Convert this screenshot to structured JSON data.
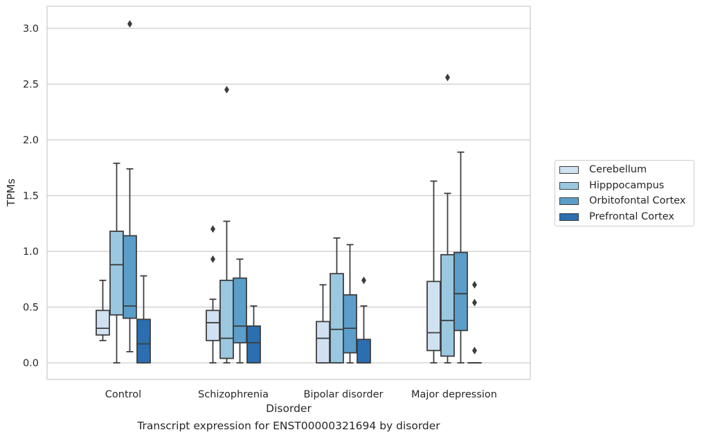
{
  "caption": "Transcript expression for ENST00000321694 by disorder",
  "chart_data": {
    "type": "box",
    "xlabel": "Disorder",
    "ylabel": "TPMs",
    "ylim": [
      -0.15,
      3.2
    ],
    "yticks": [
      0.0,
      0.5,
      1.0,
      1.5,
      2.0,
      2.5,
      3.0
    ],
    "ytick_labels": [
      "0.0",
      "0.5",
      "1.0",
      "1.5",
      "2.0",
      "2.5",
      "3.0"
    ],
    "grid": "horizontal",
    "legend_position": "right",
    "categories": [
      "Control",
      "Schizophrenia",
      "Bipolar disorder",
      "Major depression"
    ],
    "series": [
      {
        "name": "Cerebellum",
        "color": "#d0e1f2",
        "boxes": [
          {
            "min": 0.2,
            "q1": 0.25,
            "median": 0.31,
            "q3": 0.47,
            "max": 0.74,
            "outliers": []
          },
          {
            "min": 0.0,
            "q1": 0.2,
            "median": 0.36,
            "q3": 0.47,
            "max": 0.57,
            "outliers": [
              0.93,
              1.2
            ]
          },
          {
            "min": 0.0,
            "q1": 0.0,
            "median": 0.22,
            "q3": 0.37,
            "max": 0.7,
            "outliers": []
          },
          {
            "min": 0.0,
            "q1": 0.11,
            "median": 0.27,
            "q3": 0.73,
            "max": 1.63,
            "outliers": []
          }
        ]
      },
      {
        "name": "Hipppocampus",
        "color": "#9ac8e0",
        "boxes": [
          {
            "min": 0.0,
            "q1": 0.43,
            "median": 0.88,
            "q3": 1.18,
            "max": 1.79,
            "outliers": []
          },
          {
            "min": 0.0,
            "q1": 0.04,
            "median": 0.22,
            "q3": 0.74,
            "max": 1.27,
            "outliers": [
              2.45
            ]
          },
          {
            "min": 0.0,
            "q1": 0.0,
            "median": 0.3,
            "q3": 0.8,
            "max": 1.12,
            "outliers": []
          },
          {
            "min": 0.0,
            "q1": 0.06,
            "median": 0.38,
            "q3": 0.97,
            "max": 1.52,
            "outliers": [
              2.56
            ]
          }
        ]
      },
      {
        "name": "Orbitofontal Cortex",
        "color": "#5a9ec9",
        "boxes": [
          {
            "min": 0.1,
            "q1": 0.4,
            "median": 0.51,
            "q3": 1.14,
            "max": 1.74,
            "outliers": [
              3.04
            ]
          },
          {
            "min": 0.0,
            "q1": 0.18,
            "median": 0.33,
            "q3": 0.76,
            "max": 0.93,
            "outliers": []
          },
          {
            "min": 0.0,
            "q1": 0.09,
            "median": 0.31,
            "q3": 0.61,
            "max": 1.06,
            "outliers": []
          },
          {
            "min": 0.0,
            "q1": 0.29,
            "median": 0.62,
            "q3": 0.99,
            "max": 1.89,
            "outliers": []
          }
        ]
      },
      {
        "name": "Prefrontal Cortex",
        "color": "#2b6fb0",
        "boxes": [
          {
            "min": 0.0,
            "q1": 0.0,
            "median": 0.17,
            "q3": 0.39,
            "max": 0.78,
            "outliers": []
          },
          {
            "min": 0.0,
            "q1": 0.0,
            "median": 0.18,
            "q3": 0.33,
            "max": 0.51,
            "outliers": []
          },
          {
            "min": 0.0,
            "q1": 0.0,
            "median": 0.0,
            "q3": 0.21,
            "max": 0.51,
            "outliers": [
              0.74
            ]
          },
          {
            "min": 0.0,
            "q1": 0.0,
            "median": 0.0,
            "q3": 0.0,
            "max": 0.0,
            "outliers": [
              0.11,
              0.54,
              0.7
            ]
          }
        ]
      }
    ]
  }
}
